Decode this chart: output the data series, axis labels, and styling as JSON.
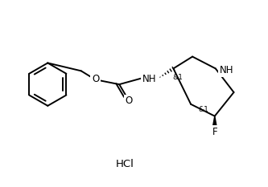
{
  "background_color": "#ffffff",
  "line_color": "#000000",
  "text_color": "#000000",
  "fig_width": 3.33,
  "fig_height": 2.33,
  "dpi": 100,
  "font_size": 8.5,
  "small_font_size": 6.5,
  "HCl_text": "HCl",
  "O_carbonyl_text": "O",
  "O_ester_text": "O",
  "NH_text": "NH",
  "F_text": "F",
  "stereo_c3_text": "&1",
  "stereo_c5_text": "&1",
  "NH_ring_text": "NH"
}
